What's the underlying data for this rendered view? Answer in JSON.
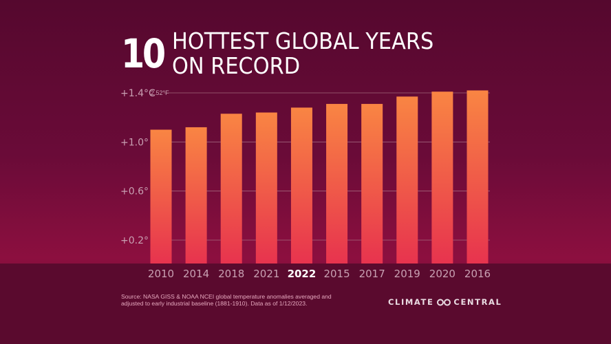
{
  "headline": {
    "number": "10",
    "line1": "HOTTEST GLOBAL YEARS",
    "line2": "ON RECORD"
  },
  "chart_data": {
    "type": "bar",
    "categories": [
      "2010",
      "2014",
      "2018",
      "2021",
      "2022",
      "2015",
      "2017",
      "2019",
      "2020",
      "2016"
    ],
    "values": [
      1.1,
      1.12,
      1.23,
      1.24,
      1.28,
      1.31,
      1.31,
      1.37,
      1.41,
      1.42
    ],
    "highlight_category": "2022",
    "yticks": [
      {
        "value": 1.4,
        "label": "+1.4°C",
        "sublabel": "2.52°F"
      },
      {
        "value": 1.0,
        "label": "+1.0°",
        "sublabel": ""
      },
      {
        "value": 0.6,
        "label": "+0.6°",
        "sublabel": ""
      },
      {
        "value": 0.2,
        "label": "+0.2°",
        "sublabel": ""
      }
    ],
    "ylim": [
      0,
      1.4
    ],
    "grid": true,
    "bar_gradient": {
      "top": "#f98543",
      "bottom": "#e7334e"
    },
    "colors": {
      "tick_label": "#c9a1b3",
      "highlight_label": "#ffffff",
      "gridline": "#b2808f"
    }
  },
  "source": "Source: NASA GISS & NOAA NCEI global temperature anomalies averaged and adjusted to early industrial baseline (1881-1910). Data as of 1/12/2023.",
  "logo": {
    "left": "CLIMATE",
    "right": "CENTRAL",
    "icon": "infinity-icon"
  }
}
